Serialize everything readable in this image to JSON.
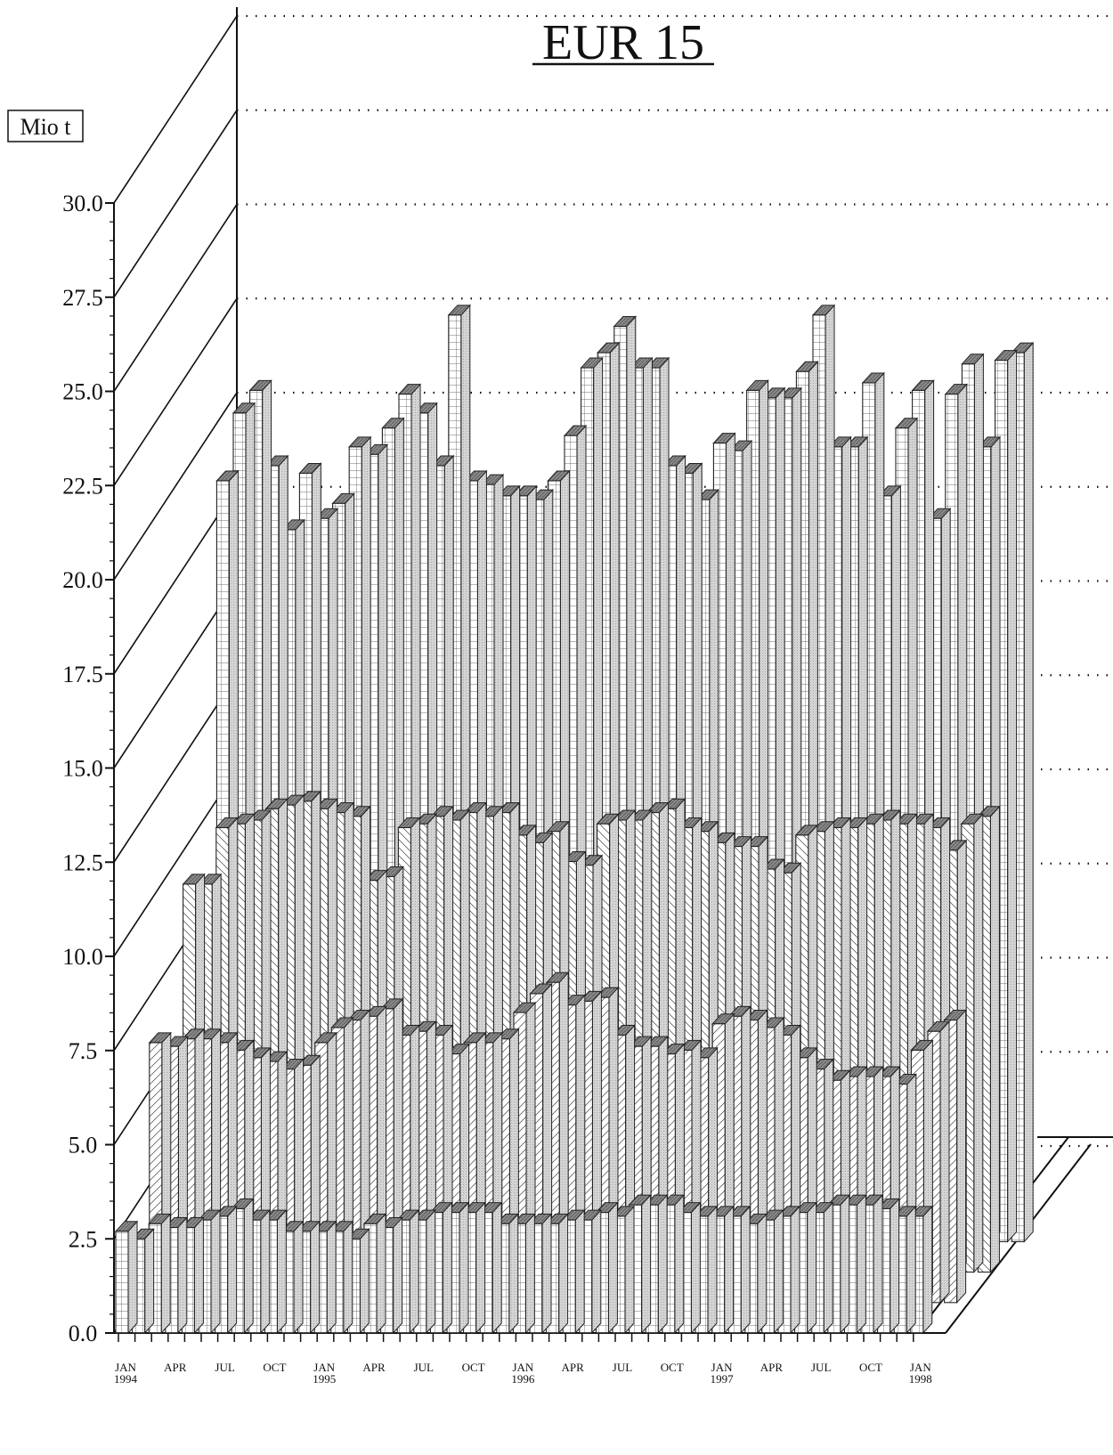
{
  "chart_data": {
    "type": "bar",
    "title": "EUR 15",
    "ylabel": "Mio t",
    "xlabel": "",
    "ylim": [
      0,
      30
    ],
    "y_ticks": [
      "0.0",
      "2.5",
      "5.0",
      "7.5",
      "10.0",
      "12.5",
      "15.0",
      "17.5",
      "20.0",
      "22.5",
      "25.0",
      "27.5",
      "30.0"
    ],
    "x_tick_labels": [
      {
        "month": "JAN",
        "year": "1994",
        "index": 0
      },
      {
        "month": "APR",
        "year": "",
        "index": 3
      },
      {
        "month": "JUL",
        "year": "",
        "index": 6
      },
      {
        "month": "OCT",
        "year": "",
        "index": 9
      },
      {
        "month": "JAN",
        "year": "1995",
        "index": 12
      },
      {
        "month": "APR",
        "year": "",
        "index": 15
      },
      {
        "month": "JUL",
        "year": "",
        "index": 18
      },
      {
        "month": "OCT",
        "year": "",
        "index": 21
      },
      {
        "month": "JAN",
        "year": "1996",
        "index": 24
      },
      {
        "month": "APR",
        "year": "",
        "index": 27
      },
      {
        "month": "JUL",
        "year": "",
        "index": 30
      },
      {
        "month": "OCT",
        "year": "",
        "index": 33
      },
      {
        "month": "JAN",
        "year": "1997",
        "index": 36
      },
      {
        "month": "APR",
        "year": "",
        "index": 39
      },
      {
        "month": "JUL",
        "year": "",
        "index": 42
      },
      {
        "month": "OCT",
        "year": "",
        "index": 45
      },
      {
        "month": "JAN",
        "year": "1998",
        "index": 48
      }
    ],
    "grid": "dotted horizontal on back wall",
    "series": [
      {
        "pattern": "grid",
        "values": [
          2.7,
          2.5,
          2.9,
          2.8,
          2.8,
          3.0,
          3.1,
          3.3,
          3.0,
          3.0,
          2.7,
          2.7,
          2.7,
          2.7,
          2.5,
          2.9,
          2.8,
          3.0,
          3.0,
          3.2,
          3.2,
          3.2,
          3.2,
          2.9,
          2.9,
          2.9,
          2.9,
          3.0,
          3.0,
          3.2,
          3.1,
          3.4,
          3.4,
          3.4,
          3.2,
          3.1,
          3.1,
          3.1,
          2.9,
          3.0,
          3.1,
          3.2,
          3.2,
          3.4,
          3.4,
          3.4,
          3.3,
          3.1,
          3.1
        ]
      },
      {
        "pattern": "diagonal",
        "values": [
          6.9,
          6.8,
          7.0,
          7.0,
          6.9,
          6.7,
          6.5,
          6.4,
          6.2,
          6.3,
          6.9,
          7.3,
          7.5,
          7.6,
          7.8,
          7.1,
          7.2,
          7.1,
          6.6,
          6.9,
          6.9,
          7.0,
          7.7,
          8.2,
          8.5,
          7.9,
          8.0,
          8.1,
          7.1,
          6.8,
          6.8,
          6.6,
          6.7,
          6.5,
          7.4,
          7.6,
          7.5,
          7.3,
          7.1,
          6.5,
          6.2,
          5.9,
          6.0,
          6.0,
          6.0,
          5.8,
          6.7,
          7.2,
          7.5
        ]
      },
      {
        "pattern": "back-diagonal",
        "values": [
          10.3,
          10.3,
          11.8,
          11.9,
          12.0,
          12.3,
          12.4,
          12.5,
          12.3,
          12.2,
          12.1,
          10.4,
          10.5,
          11.8,
          11.9,
          12.1,
          12.0,
          12.2,
          12.1,
          12.2,
          11.6,
          11.4,
          11.7,
          10.9,
          10.8,
          11.9,
          12.0,
          12.0,
          12.2,
          12.3,
          11.8,
          11.7,
          11.4,
          11.3,
          11.3,
          10.7,
          10.6,
          11.6,
          11.7,
          11.8,
          11.8,
          11.9,
          12.0,
          11.9,
          11.9,
          11.8,
          11.2,
          11.9,
          12.1
        ]
      },
      {
        "pattern": "grid",
        "values": [
          20.2,
          22.0,
          22.6,
          20.6,
          18.9,
          20.4,
          19.2,
          19.6,
          21.1,
          20.9,
          21.6,
          22.5,
          22.0,
          20.6,
          24.6,
          20.2,
          20.1,
          19.8,
          19.8,
          19.7,
          20.2,
          21.4,
          23.2,
          23.6,
          24.3,
          23.2,
          23.2,
          20.6,
          20.4,
          19.7,
          21.2,
          21.0,
          22.6,
          22.4,
          22.4,
          23.1,
          24.6,
          21.1,
          21.1,
          22.8,
          19.8,
          21.6,
          22.6,
          19.2,
          22.5,
          23.3,
          21.1,
          23.4,
          23.6
        ]
      }
    ]
  }
}
